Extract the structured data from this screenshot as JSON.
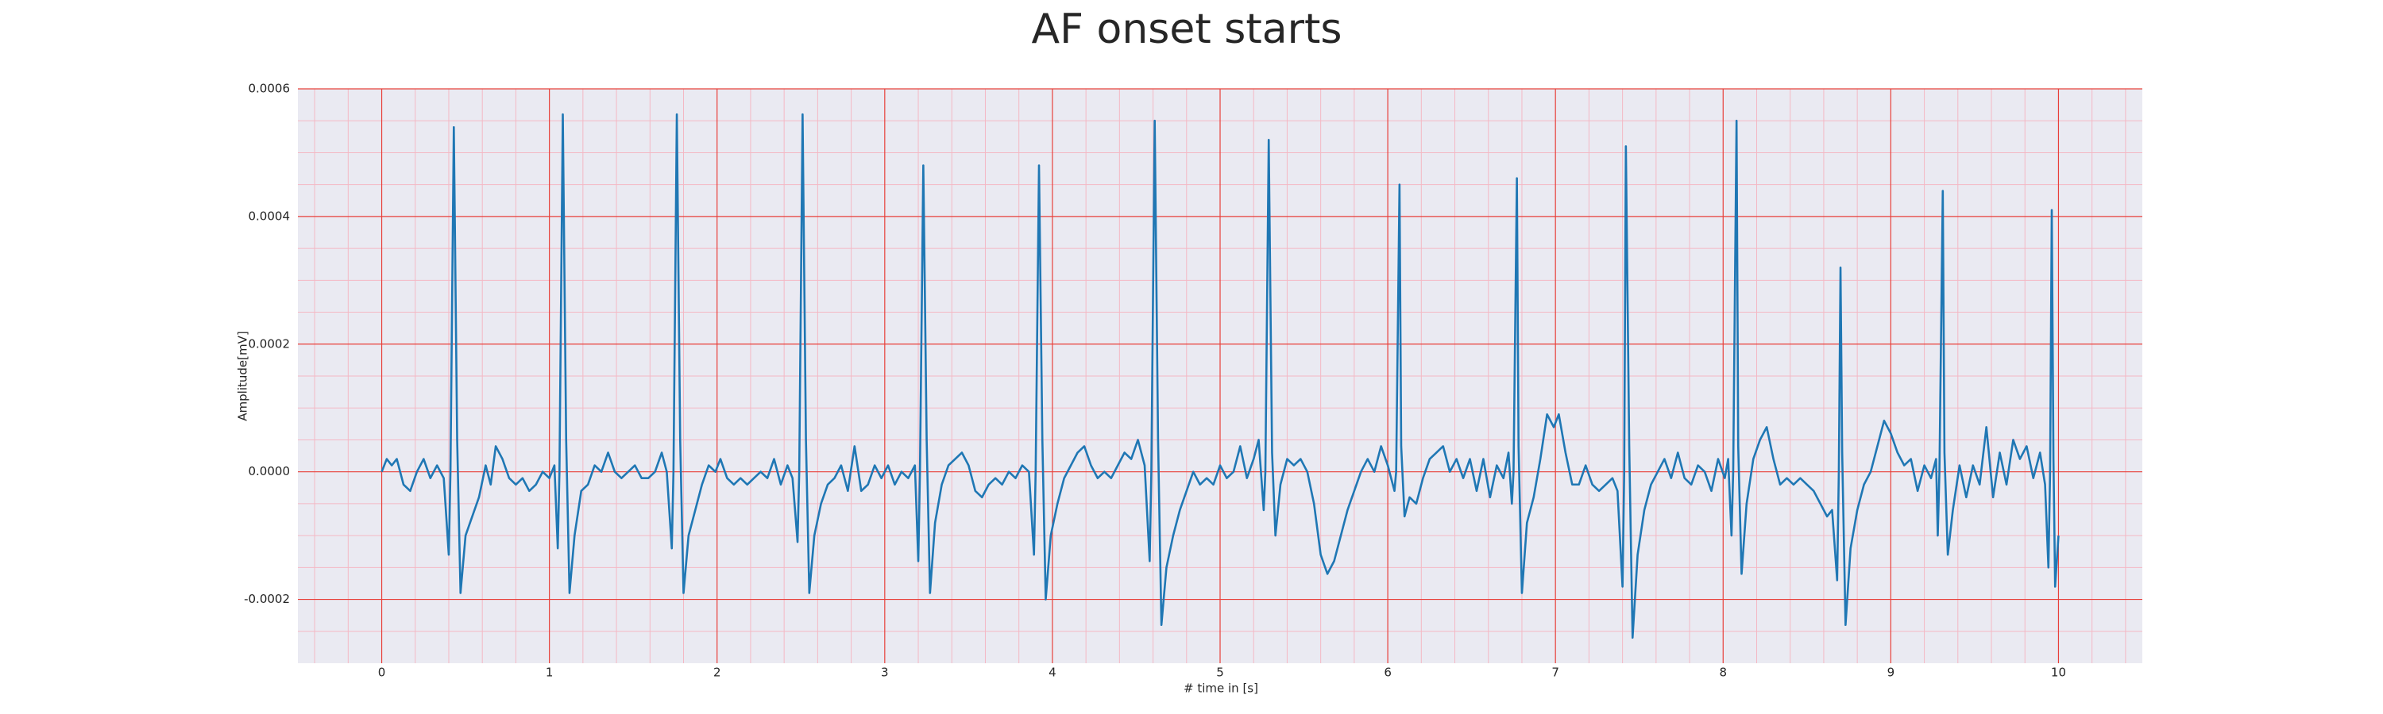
{
  "chart_data": {
    "type": "line",
    "title": "AF onset starts",
    "xlabel": "# time in [s]",
    "ylabel": "Amplitude[mV]",
    "color": "#1f77b4",
    "grid": true,
    "major_grid_color": "#e8403a",
    "minor_grid_color": "#f4b8c4",
    "background": "#eaeaf2",
    "xlim": [
      -0.5,
      10.5
    ],
    "ylim": [
      -0.0003,
      0.0006
    ],
    "xticks": [
      0,
      1,
      2,
      3,
      4,
      5,
      6,
      7,
      8,
      9,
      10
    ],
    "yticks": [
      -0.0002,
      {
        "value": 0,
        "label": "0.0000"
      },
      0.0002,
      0.0004,
      0.0006
    ],
    "xminorticks": [
      -0.4,
      -0.2,
      0.2,
      0.4,
      0.6,
      0.8,
      1.2,
      1.4,
      1.6,
      1.8,
      2.2,
      2.4,
      2.6,
      2.8,
      3.2,
      3.4,
      3.6,
      3.8,
      4.2,
      4.4,
      4.6,
      4.8,
      5.2,
      5.4,
      5.6,
      5.8,
      6.2,
      6.4,
      6.6,
      6.8,
      7.2,
      7.4,
      7.6,
      7.8,
      8.2,
      8.4,
      8.6,
      8.8,
      9.2,
      9.4,
      9.6,
      9.8,
      10.2,
      10.4
    ],
    "yminorticks": [
      -0.00025,
      -0.00015,
      -0.0001,
      -5e-05,
      5e-05,
      0.0001,
      0.00015,
      0.00025,
      0.0003,
      0.00035,
      0.00045,
      0.0005,
      0.00055
    ],
    "x": [
      0.0,
      0.03,
      0.06,
      0.09,
      0.13,
      0.17,
      0.21,
      0.25,
      0.29,
      0.33,
      0.37,
      0.4,
      0.41,
      0.43,
      0.45,
      0.47,
      0.5,
      0.54,
      0.58,
      0.62,
      0.65,
      0.68,
      0.72,
      0.76,
      0.8,
      0.84,
      0.88,
      0.92,
      0.96,
      1.0,
      1.03,
      1.05,
      1.06,
      1.08,
      1.1,
      1.12,
      1.15,
      1.19,
      1.23,
      1.27,
      1.31,
      1.35,
      1.39,
      1.43,
      1.47,
      1.51,
      1.55,
      1.59,
      1.63,
      1.67,
      1.7,
      1.73,
      1.74,
      1.76,
      1.78,
      1.8,
      1.83,
      1.87,
      1.91,
      1.95,
      1.99,
      2.02,
      2.06,
      2.1,
      2.14,
      2.18,
      2.22,
      2.26,
      2.3,
      2.34,
      2.38,
      2.42,
      2.45,
      2.48,
      2.49,
      2.51,
      2.53,
      2.55,
      2.58,
      2.62,
      2.66,
      2.7,
      2.74,
      2.78,
      2.82,
      2.86,
      2.9,
      2.94,
      2.98,
      3.02,
      3.06,
      3.1,
      3.14,
      3.18,
      3.2,
      3.21,
      3.23,
      3.25,
      3.27,
      3.3,
      3.34,
      3.38,
      3.42,
      3.46,
      3.5,
      3.54,
      3.58,
      3.62,
      3.66,
      3.7,
      3.74,
      3.78,
      3.82,
      3.86,
      3.89,
      3.9,
      3.92,
      3.94,
      3.96,
      3.99,
      4.03,
      4.07,
      4.11,
      4.15,
      4.19,
      4.23,
      4.27,
      4.31,
      4.35,
      4.39,
      4.43,
      4.47,
      4.51,
      4.55,
      4.58,
      4.59,
      4.61,
      4.63,
      4.65,
      4.68,
      4.72,
      4.76,
      4.8,
      4.84,
      4.88,
      4.92,
      4.96,
      5.0,
      5.04,
      5.08,
      5.12,
      5.16,
      5.2,
      5.23,
      5.26,
      5.27,
      5.29,
      5.31,
      5.33,
      5.36,
      5.4,
      5.44,
      5.48,
      5.52,
      5.56,
      5.6,
      5.64,
      5.68,
      5.72,
      5.76,
      5.8,
      5.84,
      5.88,
      5.92,
      5.96,
      6.0,
      6.04,
      6.05,
      6.07,
      6.08,
      6.1,
      6.13,
      6.17,
      6.21,
      6.25,
      6.29,
      6.33,
      6.37,
      6.41,
      6.45,
      6.49,
      6.53,
      6.57,
      6.61,
      6.65,
      6.69,
      6.72,
      6.74,
      6.75,
      6.77,
      6.78,
      6.8,
      6.83,
      6.87,
      6.91,
      6.95,
      6.99,
      7.02,
      7.06,
      7.1,
      7.14,
      7.18,
      7.22,
      7.26,
      7.3,
      7.34,
      7.37,
      7.4,
      7.41,
      7.42,
      7.44,
      7.46,
      7.49,
      7.53,
      7.57,
      7.61,
      7.65,
      7.69,
      7.73,
      7.77,
      7.81,
      7.85,
      7.89,
      7.93,
      7.97,
      8.01,
      8.03,
      8.05,
      8.06,
      8.08,
      8.09,
      8.11,
      8.14,
      8.18,
      8.22,
      8.26,
      8.3,
      8.34,
      8.38,
      8.42,
      8.46,
      8.5,
      8.54,
      8.58,
      8.62,
      8.65,
      8.68,
      8.69,
      8.7,
      8.71,
      8.73,
      8.76,
      8.8,
      8.84,
      8.88,
      8.92,
      8.96,
      9.0,
      9.04,
      9.08,
      9.12,
      9.16,
      9.2,
      9.24,
      9.27,
      9.28,
      9.29,
      9.31,
      9.32,
      9.34,
      9.37,
      9.41,
      9.45,
      9.49,
      9.53,
      9.57,
      9.61,
      9.65,
      9.69,
      9.73,
      9.77,
      9.81,
      9.85,
      9.89,
      9.92,
      9.94,
      9.95,
      9.96,
      9.97,
      9.98,
      10.0
    ],
    "values": [
      0,
      2e-05,
      1e-05,
      2e-05,
      -2e-05,
      -3e-05,
      0,
      2e-05,
      -1e-05,
      1e-05,
      -1e-05,
      -0.00013,
      0,
      0.00054,
      5e-05,
      -0.00019,
      -0.0001,
      -7e-05,
      -4e-05,
      1e-05,
      -2e-05,
      4e-05,
      2e-05,
      -1e-05,
      -2e-05,
      -1e-05,
      -3e-05,
      -2e-05,
      0,
      -1e-05,
      1e-05,
      -0.00012,
      0,
      0.00056,
      5e-05,
      -0.00019,
      -0.0001,
      -3e-05,
      -2e-05,
      1e-05,
      0,
      3e-05,
      0,
      -1e-05,
      0,
      1e-05,
      -1e-05,
      -1e-05,
      0,
      3e-05,
      0,
      -0.00012,
      0,
      0.00056,
      5e-05,
      -0.00019,
      -0.0001,
      -6e-05,
      -2e-05,
      1e-05,
      0,
      2e-05,
      -1e-05,
      -2e-05,
      -1e-05,
      -2e-05,
      -1e-05,
      0,
      -1e-05,
      2e-05,
      -2e-05,
      1e-05,
      -1e-05,
      -0.00011,
      0,
      0.00056,
      5e-05,
      -0.00019,
      -0.0001,
      -5e-05,
      -2e-05,
      -1e-05,
      1e-05,
      -3e-05,
      4e-05,
      -3e-05,
      -2e-05,
      1e-05,
      -1e-05,
      1e-05,
      -2e-05,
      0,
      -1e-05,
      1e-05,
      -0.00014,
      0,
      0.00048,
      5e-05,
      -0.00019,
      -8e-05,
      -2e-05,
      1e-05,
      2e-05,
      3e-05,
      1e-05,
      -3e-05,
      -4e-05,
      -2e-05,
      -1e-05,
      -2e-05,
      0,
      -1e-05,
      1e-05,
      0,
      -0.00013,
      0,
      0.00048,
      5e-05,
      -0.0002,
      -0.0001,
      -5e-05,
      -1e-05,
      1e-05,
      3e-05,
      4e-05,
      1e-05,
      -1e-05,
      0,
      -1e-05,
      1e-05,
      3e-05,
      2e-05,
      5e-05,
      1e-05,
      -0.00014,
      0,
      0.00055,
      5e-05,
      -0.00024,
      -0.00015,
      -0.0001,
      -6e-05,
      -3e-05,
      0,
      -2e-05,
      -1e-05,
      -2e-05,
      1e-05,
      -1e-05,
      0,
      4e-05,
      -1e-05,
      2e-05,
      5e-05,
      -6e-05,
      0,
      0.00052,
      3e-05,
      -0.0001,
      -2e-05,
      2e-05,
      1e-05,
      2e-05,
      0,
      -5e-05,
      -0.00013,
      -0.00016,
      -0.00014,
      -0.0001,
      -6e-05,
      -3e-05,
      0,
      2e-05,
      0,
      4e-05,
      1e-05,
      -3e-05,
      0,
      0.00045,
      4e-05,
      -7e-05,
      -4e-05,
      -5e-05,
      -1e-05,
      2e-05,
      3e-05,
      4e-05,
      0,
      2e-05,
      -1e-05,
      2e-05,
      -3e-05,
      2e-05,
      -4e-05,
      1e-05,
      -1e-05,
      3e-05,
      -5e-05,
      0,
      0.00046,
      4e-05,
      -0.00019,
      -8e-05,
      -4e-05,
      2e-05,
      9e-05,
      7e-05,
      9e-05,
      3e-05,
      -2e-05,
      -2e-05,
      1e-05,
      -2e-05,
      -3e-05,
      -2e-05,
      -1e-05,
      -3e-05,
      -0.00018,
      0,
      0.00051,
      4e-05,
      -0.00026,
      -0.00013,
      -6e-05,
      -2e-05,
      0,
      2e-05,
      -1e-05,
      3e-05,
      -1e-05,
      -2e-05,
      1e-05,
      0,
      -3e-05,
      2e-05,
      -1e-05,
      2e-05,
      -0.0001,
      0,
      0.00055,
      4e-05,
      -0.00016,
      -5e-05,
      2e-05,
      5e-05,
      7e-05,
      2e-05,
      -2e-05,
      -1e-05,
      -2e-05,
      -1e-05,
      -2e-05,
      -3e-05,
      -5e-05,
      -7e-05,
      -6e-05,
      -0.00017,
      0,
      0.00032,
      3e-05,
      -0.00024,
      -0.00012,
      -6e-05,
      -2e-05,
      0,
      4e-05,
      8e-05,
      6e-05,
      3e-05,
      1e-05,
      2e-05,
      -3e-05,
      1e-05,
      -1e-05,
      2e-05,
      -0.0001,
      0,
      0.00044,
      3e-05,
      -0.00013,
      -6e-05,
      1e-05,
      -4e-05,
      1e-05,
      -2e-05,
      7e-05,
      -4e-05,
      3e-05,
      -2e-05,
      5e-05,
      2e-05,
      4e-05,
      -1e-05,
      3e-05,
      -2e-05,
      -0.00015,
      0,
      0.00041,
      2e-05,
      -0.00018,
      -0.0001
    ]
  }
}
